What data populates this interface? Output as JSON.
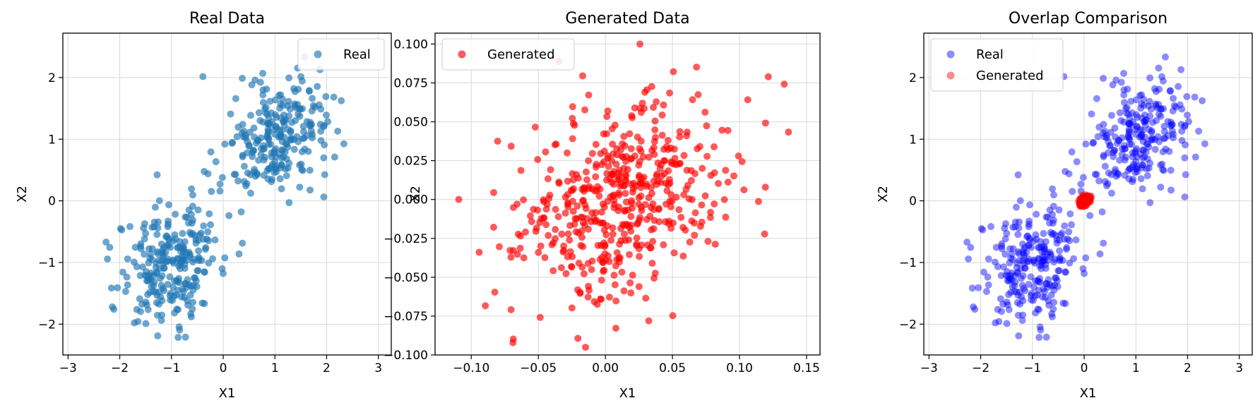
{
  "colors": {
    "real_single": "#1f77b4",
    "generated": "#ff0000",
    "real_overlap": "#0000ff",
    "grid": "#d9d9d9",
    "axis": "#000000"
  },
  "chart_data": [
    {
      "type": "scatter",
      "title": "Real Data",
      "xlabel": "X1",
      "ylabel": "X2",
      "xlim": [
        -3.1,
        3.25
      ],
      "ylim": [
        -2.5,
        2.72
      ],
      "xticks": [
        -3,
        -2,
        -1,
        0,
        1,
        2,
        3
      ],
      "xtick_labels": [
        "−3",
        "−2",
        "−1",
        "0",
        "1",
        "2",
        "3"
      ],
      "yticks": [
        -2,
        -1,
        0,
        1,
        2
      ],
      "ytick_labels": [
        "−2",
        "−1",
        "0",
        "1",
        "2"
      ],
      "grid": true,
      "legend_position": "top-right",
      "series": [
        {
          "name": "Real",
          "color": "#1f77b4",
          "opacity": 0.65,
          "clusters": [
            {
              "count": 250,
              "mean": [
                -1.0,
                -1.0
              ],
              "std": [
                0.5,
                0.5
              ],
              "corr": 0.2
            },
            {
              "count": 250,
              "mean": [
                1.0,
                1.0
              ],
              "std": [
                0.5,
                0.5
              ],
              "corr": 0.2
            }
          ]
        }
      ]
    },
    {
      "type": "scatter",
      "title": "Generated Data",
      "xlabel": "X1",
      "ylabel": "X2",
      "xlim": [
        -0.127,
        0.16
      ],
      "ylim": [
        -0.1,
        0.107
      ],
      "xticks": [
        -0.1,
        -0.05,
        0.0,
        0.05,
        0.1,
        0.15
      ],
      "xtick_labels": [
        "−0.10",
        "−0.05",
        "0.00",
        "0.05",
        "0.10",
        "0.15"
      ],
      "yticks": [
        -0.1,
        -0.075,
        -0.05,
        -0.025,
        0.0,
        0.025,
        0.05,
        0.075,
        0.1
      ],
      "ytick_labels": [
        "−0.100",
        "−0.075",
        "−0.050",
        "−0.025",
        "0.000",
        "0.025",
        "0.050",
        "0.075",
        "0.100"
      ],
      "grid": true,
      "legend_position": "top-left",
      "series": [
        {
          "name": "Generated",
          "color": "#ff0000",
          "opacity": 0.65,
          "clusters": [
            {
              "count": 500,
              "mean": [
                0.01,
                -0.005
              ],
              "std": [
                0.042,
                0.035
              ],
              "corr": 0.3
            }
          ]
        }
      ]
    },
    {
      "type": "scatter",
      "title": "Overlap Comparison",
      "xlabel": "X1",
      "ylabel": "X2",
      "xlim": [
        -3.1,
        3.25
      ],
      "ylim": [
        -2.5,
        2.72
      ],
      "xticks": [
        -3,
        -2,
        -1,
        0,
        1,
        2,
        3
      ],
      "xtick_labels": [
        "−3",
        "−2",
        "−1",
        "0",
        "1",
        "2",
        "3"
      ],
      "yticks": [
        -2,
        -1,
        0,
        1,
        2
      ],
      "ytick_labels": [
        "−2",
        "−1",
        "0",
        "1",
        "2"
      ],
      "grid": true,
      "legend_position": "top-left",
      "series": [
        {
          "name": "Real",
          "color": "#0000ff",
          "opacity": 0.45,
          "clusters": [
            {
              "count": 250,
              "mean": [
                -1.0,
                -1.0
              ],
              "std": [
                0.5,
                0.5
              ],
              "corr": 0.2
            },
            {
              "count": 250,
              "mean": [
                1.0,
                1.0
              ],
              "std": [
                0.5,
                0.5
              ],
              "corr": 0.2
            }
          ]
        },
        {
          "name": "Generated",
          "color": "#ff0000",
          "opacity": 0.45,
          "clusters": [
            {
              "count": 500,
              "mean": [
                0.01,
                -0.005
              ],
              "std": [
                0.042,
                0.035
              ],
              "corr": 0.3
            }
          ]
        }
      ]
    }
  ]
}
